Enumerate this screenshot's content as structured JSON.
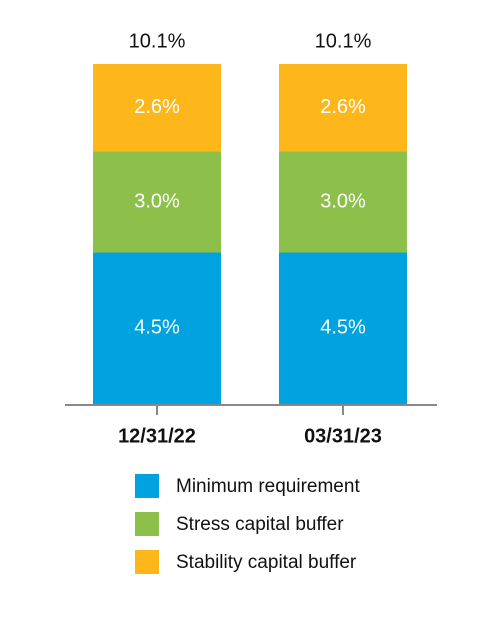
{
  "chart_data": {
    "type": "stacked_bar",
    "categories": [
      "12/31/22",
      "03/31/23"
    ],
    "series": [
      {
        "name": "Minimum requirement",
        "color": "#00a3e0",
        "values": [
          4.5,
          4.5
        ],
        "value_labels": [
          "4.5%",
          "4.5%"
        ]
      },
      {
        "name": "Stress capital buffer",
        "color": "#8cc04b",
        "values": [
          3.0,
          3.0
        ],
        "value_labels": [
          "3.0%",
          "3.0%"
        ]
      },
      {
        "name": "Stability capital buffer",
        "color": "#fdb71a",
        "values": [
          2.6,
          2.6
        ],
        "value_labels": [
          "2.6%",
          "2.6%"
        ]
      }
    ],
    "totals": {
      "values": [
        10.1,
        10.1
      ],
      "value_labels": [
        "10.1%",
        "10.1%"
      ]
    }
  }
}
